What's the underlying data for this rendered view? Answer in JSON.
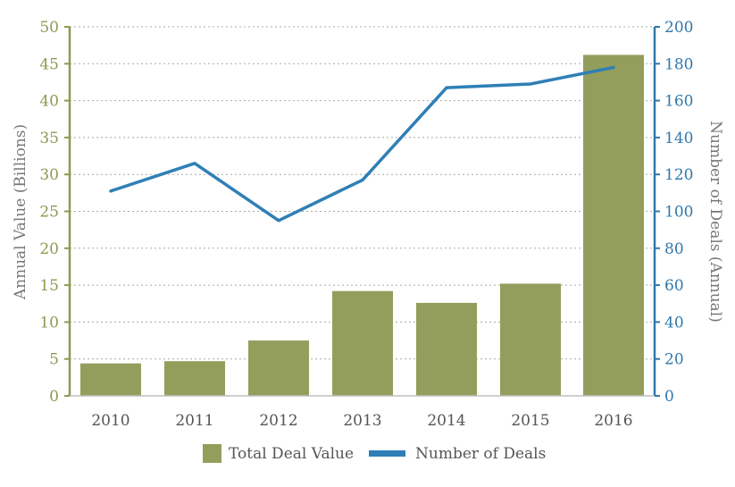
{
  "chart_data": {
    "type": "bar",
    "categories": [
      "2010",
      "2011",
      "2012",
      "2013",
      "2014",
      "2015",
      "2016"
    ],
    "series": [
      {
        "name": "Total Deal Value",
        "type": "bar",
        "axis": "left",
        "color": "#949e5c",
        "values": [
          4.4,
          4.7,
          7.5,
          14.2,
          12.6,
          15.2,
          46.2
        ]
      },
      {
        "name": "Number of Deals",
        "type": "line",
        "axis": "right",
        "color": "#2f7fb6",
        "values": [
          111,
          126,
          95,
          117,
          167,
          169,
          178
        ]
      }
    ],
    "ylabel": "Annual Value (Billions)",
    "y2label": "Number of Deals (Annual)",
    "ylim": [
      0,
      50
    ],
    "y2lim": [
      0,
      200
    ],
    "yticks": [
      "0",
      "5",
      "10",
      "15",
      "20",
      "25",
      "30",
      "35",
      "40",
      "45",
      "50"
    ],
    "y2ticks": [
      "0",
      "20",
      "40",
      "60",
      "80",
      "100",
      "120",
      "140",
      "160",
      "180",
      "200"
    ],
    "grid": "horizontal dotted",
    "legend_position": "bottom"
  },
  "colors": {
    "left_axis": "#8c9a52",
    "right_axis": "#2f78ad",
    "grid": "#a9a9a9"
  }
}
